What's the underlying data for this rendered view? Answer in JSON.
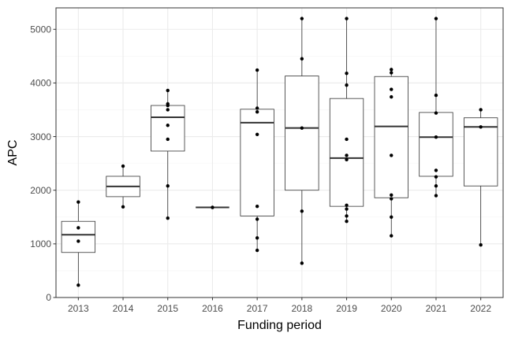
{
  "chart_data": {
    "type": "box",
    "title": "",
    "xlabel": "Funding period",
    "ylabel": "APC",
    "categories": [
      "2013",
      "2014",
      "2015",
      "2016",
      "2017",
      "2018",
      "2019",
      "2020",
      "2021",
      "2022"
    ],
    "ylim": [
      0,
      5400
    ],
    "yticks": [
      0,
      1000,
      2000,
      3000,
      4000,
      5000
    ],
    "grid": true,
    "boxes": [
      {
        "category": "2013",
        "min": 230,
        "q1": 840,
        "median": 1170,
        "q3": 1420,
        "max": 1780
      },
      {
        "category": "2014",
        "min": 1690,
        "q1": 1880,
        "median": 2070,
        "q3": 2260,
        "max": 2450
      },
      {
        "category": "2015",
        "min": 1480,
        "q1": 2730,
        "median": 3360,
        "q3": 3580,
        "max": 3860
      },
      {
        "category": "2016",
        "min": 1680,
        "q1": 1680,
        "median": 1680,
        "q3": 1680,
        "max": 1680
      },
      {
        "category": "2017",
        "min": 880,
        "q1": 1520,
        "median": 3260,
        "q3": 3510,
        "max": 4240
      },
      {
        "category": "2018",
        "min": 640,
        "q1": 2000,
        "median": 3160,
        "q3": 4130,
        "max": 5200
      },
      {
        "category": "2019",
        "min": 1420,
        "q1": 1700,
        "median": 2600,
        "q3": 3710,
        "max": 5200
      },
      {
        "category": "2020",
        "min": 1150,
        "q1": 1860,
        "median": 3190,
        "q3": 4120,
        "max": 4250
      },
      {
        "category": "2021",
        "min": 1900,
        "q1": 2260,
        "median": 2990,
        "q3": 3450,
        "max": 5200
      },
      {
        "category": "2022",
        "min": 980,
        "q1": 2080,
        "median": 3180,
        "q3": 3350,
        "max": 3500
      }
    ],
    "points": [
      {
        "category": "2013",
        "values": [
          230,
          1050,
          1300,
          1780
        ]
      },
      {
        "category": "2014",
        "values": [
          1690,
          2450
        ]
      },
      {
        "category": "2015",
        "values": [
          1480,
          2080,
          2950,
          3210,
          3500,
          3580,
          3610,
          3860
        ]
      },
      {
        "category": "2016",
        "values": [
          1680
        ]
      },
      {
        "category": "2017",
        "values": [
          880,
          1110,
          1460,
          1700,
          3040,
          3460,
          3530,
          4240
        ]
      },
      {
        "category": "2018",
        "values": [
          640,
          1610,
          3160,
          4450,
          5200
        ]
      },
      {
        "category": "2019",
        "values": [
          1420,
          1520,
          1650,
          1720,
          2570,
          2650,
          2950,
          3960,
          4180,
          5200
        ]
      },
      {
        "category": "2020",
        "values": [
          1150,
          1500,
          1840,
          1910,
          2650,
          3740,
          3880,
          4190,
          4250
        ]
      },
      {
        "category": "2021",
        "values": [
          1900,
          2080,
          2250,
          2370,
          2990,
          3440,
          3770,
          5200
        ]
      },
      {
        "category": "2022",
        "values": [
          980,
          3180,
          3500
        ]
      }
    ],
    "colors": {
      "panel_border": "#333333",
      "grid_major": "#ebebeb",
      "grid_minor": "#f5f5f5",
      "box_line": "#333333",
      "point": "#000000",
      "tick_text": "#4d4d4d"
    }
  }
}
